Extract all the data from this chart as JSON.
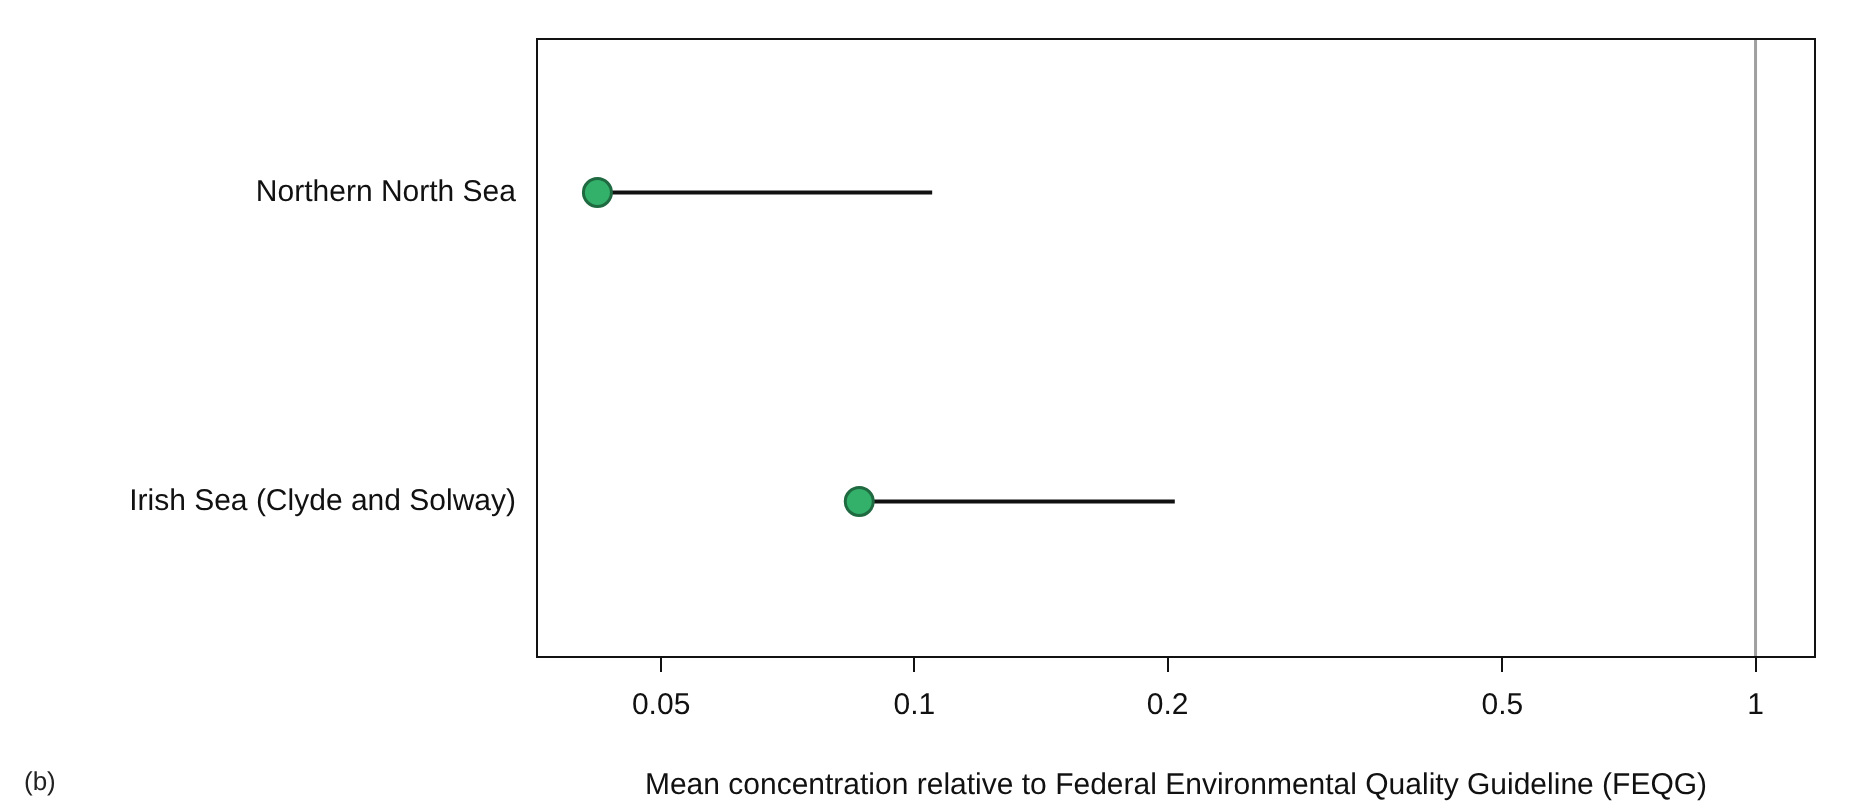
{
  "chart_data": {
    "type": "scatter",
    "xlabel": "Mean concentration relative to Federal Environmental Quality Guideline (FEQG)",
    "categories": [
      "Northern North Sea",
      "Irish Sea (Clyde and Solway)"
    ],
    "orientation": "horizontal",
    "series": [
      {
        "color": "#33b06a",
        "values": [
          0.042,
          0.086
        ],
        "errors": [
          [
            0.042,
            0.105
          ],
          [
            0.086,
            0.204
          ]
        ]
      }
    ],
    "log": "x",
    "xlim": [
      0.0355,
      1.18
    ],
    "xticks": [
      0.05,
      0.1,
      0.2,
      0.5,
      1
    ],
    "grid": false,
    "legend": false,
    "marker": "circle",
    "ref_lines": [
      {
        "axis": "x",
        "value": 1,
        "color": "#a0a0a0"
      }
    ],
    "annotations": [
      "(b)"
    ]
  }
}
